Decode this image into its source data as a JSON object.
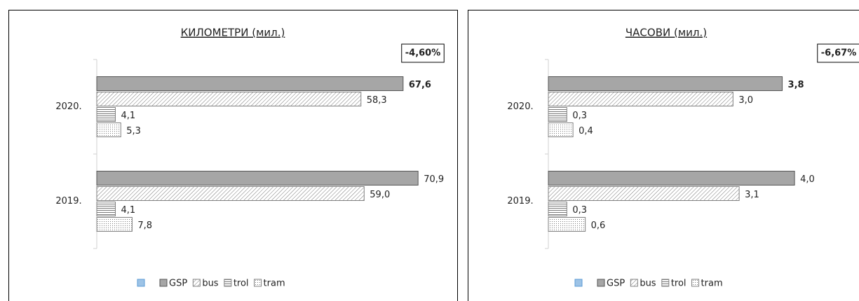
{
  "chart_data": [
    {
      "type": "hbar",
      "title": "КИЛОМЕТРИ (мил.)",
      "annotation": "-4,60%",
      "annotation_color": "#ff0000",
      "categories": [
        "2020.",
        "2019."
      ],
      "xlim": [
        0,
        80
      ],
      "series": [
        {
          "name": "GSP",
          "color": "#a6a6a6",
          "values": [
            67.6,
            70.9
          ],
          "value_labels": [
            "67,6",
            "70,9"
          ],
          "label_colors": [
            "#ff0000",
            null
          ]
        },
        {
          "name": "bus",
          "color": "#7f7f7f",
          "values": [
            58.3,
            59.0
          ],
          "value_labels": [
            "58,3",
            "59,0"
          ]
        },
        {
          "name": "trol",
          "color": "#7f7f7f",
          "values": [
            4.1,
            4.1
          ],
          "value_labels": [
            "4,1",
            "4,1"
          ]
        },
        {
          "name": "tram",
          "color": "#7f7f7f",
          "values": [
            5.3,
            7.8
          ],
          "value_labels": [
            "5,3",
            "7,8"
          ]
        }
      ]
    },
    {
      "type": "hbar",
      "title": "ЧАСОВИ (мил.)",
      "annotation": "-6,67%",
      "annotation_color": "#ff0000",
      "categories": [
        "2020.",
        "2019."
      ],
      "xlim": [
        0,
        4.5
      ],
      "series": [
        {
          "name": "GSP",
          "color": "#a6a6a6",
          "values": [
            3.8,
            4.0
          ],
          "value_labels": [
            "3,8",
            "4,0"
          ],
          "label_colors": [
            "#ff0000",
            null
          ]
        },
        {
          "name": "bus",
          "color": "#7f7f7f",
          "values": [
            3.0,
            3.1
          ],
          "value_labels": [
            "3,0",
            "3,1"
          ]
        },
        {
          "name": "trol",
          "color": "#7f7f7f",
          "values": [
            0.3,
            0.3
          ],
          "value_labels": [
            "0,3",
            "0,3"
          ]
        },
        {
          "name": "tram",
          "color": "#7f7f7f",
          "values": [
            0.4,
            0.6
          ],
          "value_labels": [
            "0,4",
            "0,6"
          ]
        }
      ]
    }
  ]
}
